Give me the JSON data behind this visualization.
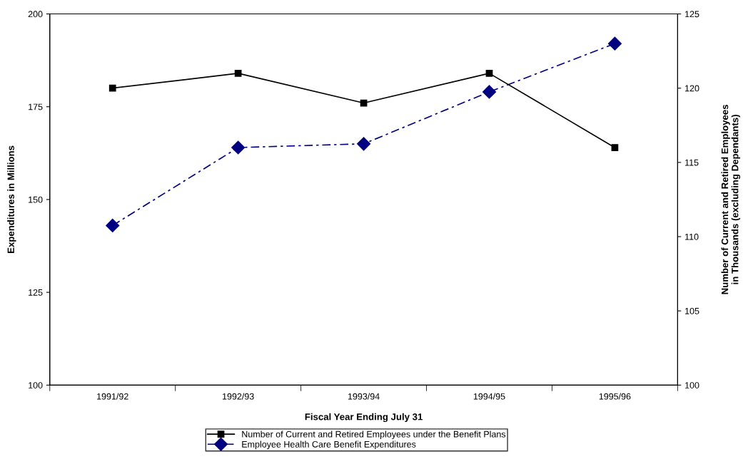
{
  "chart_data": {
    "type": "line",
    "xlabel": "Fiscal Year Ending July 31",
    "ylabel": "Expenditures in Millions",
    "y2label": "Number of Current and Retired Employees\nin Thousands (excluding Dependants)",
    "categories": [
      "1991/92",
      "1992/93",
      "1993/94",
      "1994/95",
      "1995/96"
    ],
    "series": [
      {
        "name": "Number of Current and Retired Employees under the Benefit Plans",
        "color": "#000000",
        "values": [
          120,
          121,
          119,
          121,
          116
        ],
        "axis": "y2",
        "marker": "square",
        "line_style": "solid"
      },
      {
        "name": "Employee Health Care Benefit Expenditures",
        "color": "#000080",
        "values": [
          143,
          164,
          165,
          179,
          192
        ],
        "axis": "y",
        "marker": "diamond",
        "line_style": "dashed"
      }
    ],
    "ylim": [
      100,
      200
    ],
    "yticks": [
      100,
      125,
      150,
      175,
      200
    ],
    "y2lim": [
      100,
      125
    ],
    "y2ticks": [
      100,
      105,
      110,
      115,
      120,
      125
    ],
    "grid": false,
    "legend": "bottom"
  }
}
